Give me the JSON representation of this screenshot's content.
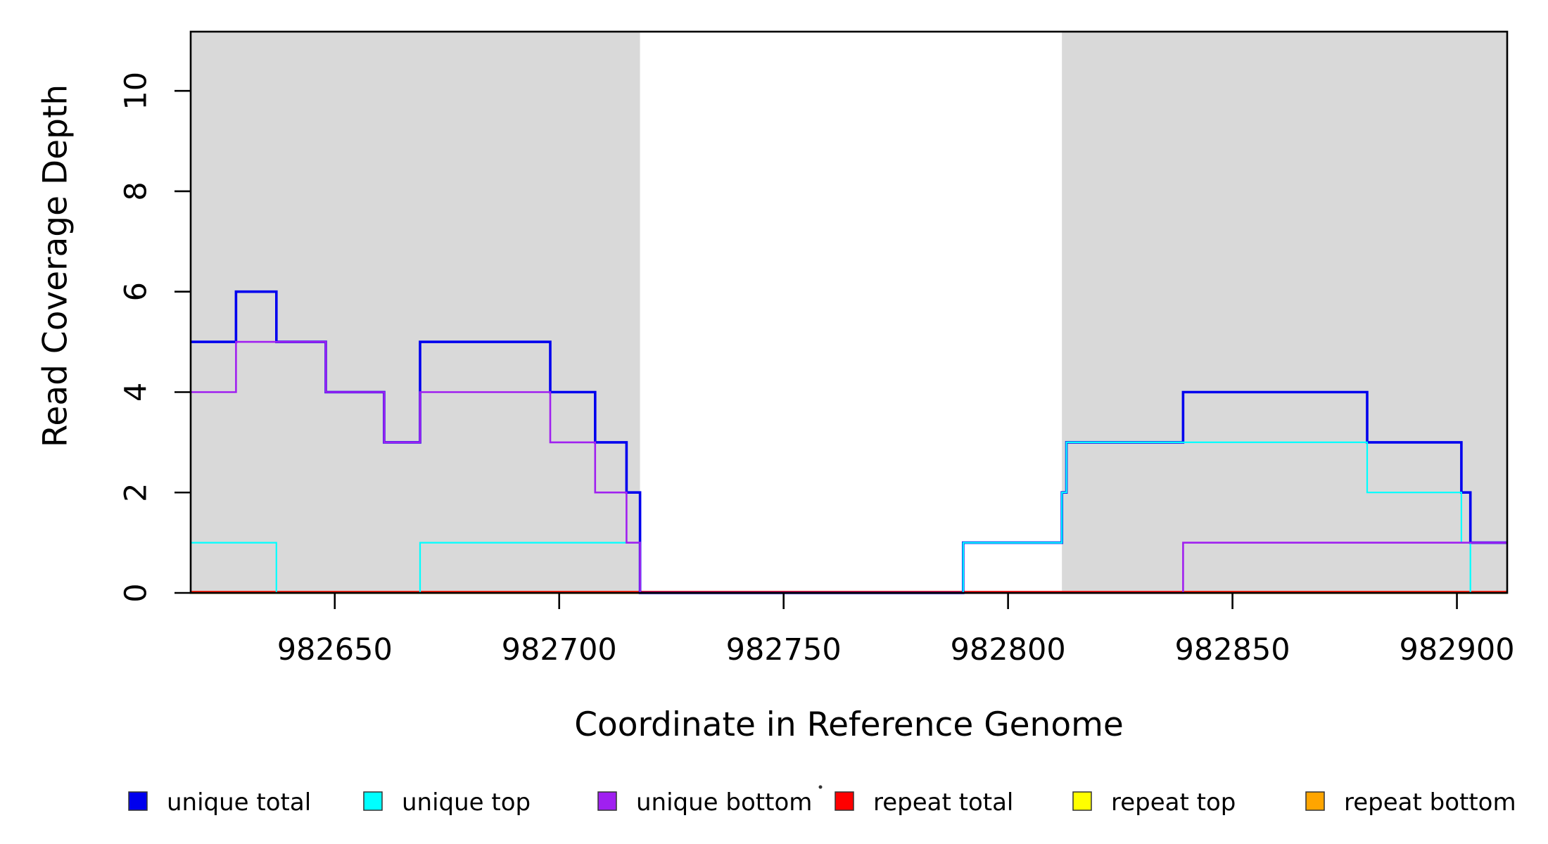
{
  "figure": {
    "background": "#FFFFFF",
    "plot_background": "#FFFFFF",
    "shaded_region_color": "#D9D9D9"
  },
  "chart_data": {
    "type": "line",
    "subtype": "step-after",
    "title": "",
    "xlabel": "Coordinate in Reference Genome",
    "ylabel": "Read Coverage Depth",
    "xlim": [
      982617.9,
      982911.2
    ],
    "ylim": [
      0,
      11.18
    ],
    "x_ticks": [
      982650,
      982700,
      982750,
      982800,
      982850,
      982900
    ],
    "y_ticks": [
      0,
      2,
      4,
      6,
      8,
      10
    ],
    "grid": false,
    "legend_position": "bottom",
    "shaded_regions": {
      "color": "#D9D9D9",
      "ranges": [
        [
          982617.9,
          982718
        ],
        [
          982812,
          982911.2
        ]
      ]
    },
    "series": [
      {
        "name": "unique total",
        "color": "#0000EE",
        "width": 3.6,
        "steps": [
          [
            982617.9,
            5
          ],
          [
            982628,
            6
          ],
          [
            982637,
            5
          ],
          [
            982648,
            4
          ],
          [
            982661,
            3
          ],
          [
            982669,
            5
          ],
          [
            982698,
            4
          ],
          [
            982708,
            3
          ],
          [
            982715,
            2
          ],
          [
            982718,
            0
          ],
          [
            982790,
            1
          ],
          [
            982812,
            2
          ],
          [
            982813,
            3
          ],
          [
            982839,
            4
          ],
          [
            982880,
            3
          ],
          [
            982901,
            2
          ],
          [
            982903,
            1
          ]
        ]
      },
      {
        "name": "unique top",
        "color": "#00FFFF",
        "width": 2.2,
        "steps": [
          [
            982617.9,
            1
          ],
          [
            982637,
            0
          ],
          [
            982669,
            1
          ],
          [
            982718,
            0
          ],
          [
            982790,
            1
          ],
          [
            982812,
            2
          ],
          [
            982813,
            3
          ],
          [
            982880,
            2
          ],
          [
            982901,
            1
          ],
          [
            982903,
            0
          ]
        ]
      },
      {
        "name": "unique bottom",
        "color": "#A020F0",
        "width": 2.6,
        "steps": [
          [
            982617.9,
            4
          ],
          [
            982628,
            5
          ],
          [
            982648,
            4
          ],
          [
            982661,
            3
          ],
          [
            982669,
            4
          ],
          [
            982698,
            3
          ],
          [
            982708,
            2
          ],
          [
            982715,
            1
          ],
          [
            982718,
            0
          ],
          [
            982839,
            1
          ]
        ]
      },
      {
        "name": "repeat total",
        "color": "#FF0000",
        "width": 3.0,
        "steps": [
          [
            982617.9,
            0
          ]
        ]
      },
      {
        "name": "repeat top",
        "color": "#FFFF00",
        "width": 2.4,
        "steps": [
          [
            982617.9,
            0
          ]
        ]
      },
      {
        "name": "repeat bottom",
        "color": "#FFA500",
        "width": 2.8,
        "steps": [
          [
            982617.9,
            0
          ]
        ]
      }
    ],
    "legend": {
      "entries": [
        {
          "label": "unique total",
          "color": "#0000EE"
        },
        {
          "label": "unique top",
          "color": "#00FFFF"
        },
        {
          "label": "unique bottom",
          "color": "#A020F0"
        },
        {
          "label": "repeat total",
          "color": "#FF0000"
        },
        {
          "label": "repeat top",
          "color": "#FFFF00"
        },
        {
          "label": "repeat bottom",
          "color": "#FFA500"
        }
      ]
    }
  }
}
